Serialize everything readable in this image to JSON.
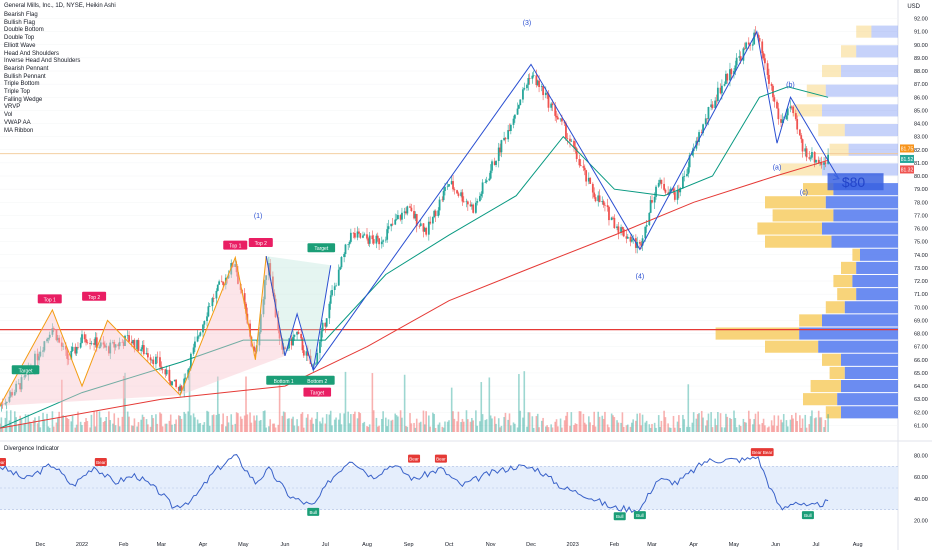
{
  "header": {
    "title": "General Mills, Inc., 1D, NYSE, Heikin Ashi",
    "currency": "USD"
  },
  "indicator_list": [
    "Bearish Flag",
    "Bullish Flag",
    "Double Bottom",
    "Double Top",
    "Elliott Wave",
    "Head And Shoulders",
    "Inverse Head And Shoulders",
    "Bearish Pennant",
    "Bullish Pennant",
    "Triple Bottom",
    "Triple Top",
    "Falling Wedge",
    "VRVP",
    "Vol",
    "VWAP AA",
    "MA Ribbon"
  ],
  "oscillator_title": "Divergence Indicator",
  "colors": {
    "up": "#26a69a",
    "down": "#ef5350",
    "ma_green": "#089981",
    "ma_red": "#e53935",
    "wave_blue": "#2a4fd1",
    "pattern_orange": "#f39c12",
    "vol_profile_blue": "#5b7ff0",
    "vol_profile_yellow": "#f7cf6b",
    "osc_line": "#3a62c9",
    "osc_band": "#dfeafb"
  },
  "chart_data": [
    {
      "type": "candlestick",
      "title": "General Mills, Inc., 1D, NYSE, Heikin Ashi",
      "x_ticks": [
        "Dec",
        "2022",
        "Feb",
        "Mar",
        "Apr",
        "May",
        "Jun",
        "Jul",
        "Aug",
        "Sep",
        "Oct",
        "Nov",
        "Dec",
        "2023",
        "Feb",
        "Mar",
        "Apr",
        "May",
        "Jun",
        "Jul",
        "Aug"
      ],
      "y_ticks": [
        "92.00",
        "91.00",
        "90.00",
        "89.00",
        "88.00",
        "87.00",
        "86.00",
        "85.00",
        "84.00",
        "83.00",
        "82.00",
        "81.00",
        "80.00",
        "79.00",
        "78.00",
        "77.00",
        "76.00",
        "75.00",
        "74.00",
        "73.00",
        "72.00",
        "71.00",
        "70.00",
        "69.00",
        "68.00",
        "67.00",
        "66.00",
        "65.00",
        "64.00",
        "63.00",
        "62.00",
        "61.00"
      ],
      "ylim": [
        60.5,
        92.8
      ],
      "price_path": [
        {
          "x": "2021-11-01",
          "y": 62.5
        },
        {
          "x": "2021-11-20",
          "y": 64.5
        },
        {
          "x": "2021-12-10",
          "y": 68.5
        },
        {
          "x": "2021-12-22",
          "y": 66.0
        },
        {
          "x": "2022-01-03",
          "y": 67.8
        },
        {
          "x": "2022-01-20",
          "y": 66.8
        },
        {
          "x": "2022-02-05",
          "y": 67.6
        },
        {
          "x": "2022-02-25",
          "y": 66.0
        },
        {
          "x": "2022-03-15",
          "y": 63.5
        },
        {
          "x": "2022-04-05",
          "y": 70.0
        },
        {
          "x": "2022-04-25",
          "y": 73.5
        },
        {
          "x": "2022-05-10",
          "y": 66.0
        },
        {
          "x": "2022-05-20",
          "y": 73.7
        },
        {
          "x": "2022-05-30",
          "y": 66.4
        },
        {
          "x": "2022-06-10",
          "y": 68.0
        },
        {
          "x": "2022-06-22",
          "y": 65.2
        },
        {
          "x": "2022-07-05",
          "y": 70.5
        },
        {
          "x": "2022-07-20",
          "y": 75.5
        },
        {
          "x": "2022-08-10",
          "y": 75.0
        },
        {
          "x": "2022-08-31",
          "y": 77.5
        },
        {
          "x": "2022-09-15",
          "y": 75.8
        },
        {
          "x": "2022-10-01",
          "y": 79.5
        },
        {
          "x": "2022-10-20",
          "y": 77.5
        },
        {
          "x": "2022-11-10",
          "y": 82.5
        },
        {
          "x": "2022-12-01",
          "y": 87.8
        },
        {
          "x": "2022-12-10",
          "y": 86.5
        },
        {
          "x": "2022-12-28",
          "y": 83.2
        },
        {
          "x": "2023-01-15",
          "y": 79.0
        },
        {
          "x": "2023-02-05",
          "y": 76.0
        },
        {
          "x": "2023-02-20",
          "y": 74.6
        },
        {
          "x": "2023-03-05",
          "y": 79.5
        },
        {
          "x": "2023-03-20",
          "y": 78.5
        },
        {
          "x": "2023-04-05",
          "y": 83.0
        },
        {
          "x": "2023-04-20",
          "y": 86.5
        },
        {
          "x": "2023-05-05",
          "y": 89.0
        },
        {
          "x": "2023-05-18",
          "y": 90.8
        },
        {
          "x": "2023-05-28",
          "y": 87.0
        },
        {
          "x": "2023-06-05",
          "y": 84.0
        },
        {
          "x": "2023-06-12",
          "y": 85.3
        },
        {
          "x": "2023-06-22",
          "y": 82.0
        },
        {
          "x": "2023-07-05",
          "y": 81.0
        },
        {
          "x": "2023-07-10",
          "y": 81.3
        }
      ],
      "moving_averages": [
        {
          "name": "",
          "color": "#089981",
          "points": [
            {
              "x": "2021-11-01",
              "y": 60.8
            },
            {
              "x": "2022-01-01",
              "y": 63.5
            },
            {
              "x": "2022-03-15",
              "y": 65.8
            },
            {
              "x": "2022-05-01",
              "y": 67.5
            },
            {
              "x": "2022-07-01",
              "y": 67.5
            },
            {
              "x": "2022-08-15",
              "y": 72.5
            },
            {
              "x": "2022-10-01",
              "y": 75.5
            },
            {
              "x": "2022-11-20",
              "y": 78.5
            },
            {
              "x": "2022-12-25",
              "y": 83.0
            },
            {
              "x": "2023-02-01",
              "y": 79.0
            },
            {
              "x": "2023-03-10",
              "y": 78.5
            },
            {
              "x": "2023-04-15",
              "y": 80.0
            },
            {
              "x": "2023-05-20",
              "y": 86.0
            },
            {
              "x": "2023-06-10",
              "y": 86.8
            },
            {
              "x": "2023-07-10",
              "y": 86.0
            }
          ]
        },
        {
          "name": "",
          "color": "#e53935",
          "points": [
            {
              "x": "2021-11-01",
              "y": 60.8
            },
            {
              "x": "2022-03-01",
              "y": 63.0
            },
            {
              "x": "2022-06-01",
              "y": 64.0
            },
            {
              "x": "2022-08-01",
              "y": 67.0
            },
            {
              "x": "2022-10-01",
              "y": 70.5
            },
            {
              "x": "2022-12-01",
              "y": 73.0
            },
            {
              "x": "2023-02-01",
              "y": 75.5
            },
            {
              "x": "2023-04-01",
              "y": 78.0
            },
            {
              "x": "2023-06-01",
              "y": 80.0
            },
            {
              "x": "2023-07-10",
              "y": 81.2
            }
          ]
        }
      ],
      "horizontal_lines": [
        {
          "y": 68.3,
          "color": "#e53935"
        },
        {
          "y": 81.7,
          "color": "#f2c894"
        }
      ],
      "elliott_wave": [
        {
          "x": "2022-06-22",
          "y": 65.2
        },
        {
          "x": "2022-12-01",
          "y": 88.5
        },
        {
          "x": "2023-02-20",
          "y": 74.4
        },
        {
          "x": "2023-05-18",
          "y": 91.0
        },
        {
          "x": "2023-06-02",
          "y": 82.5
        },
        {
          "x": "2023-06-12",
          "y": 86.0
        },
        {
          "x": "2023-07-18",
          "y": 79.8
        }
      ],
      "wave_labels": [
        {
          "text": "(1)",
          "x": "2022-05-12",
          "y": 76.8
        },
        {
          "text": "(3)",
          "x": "2022-11-28",
          "y": 91.5
        },
        {
          "text": "(4)",
          "x": "2023-02-20",
          "y": 72.2
        },
        {
          "text": "(b)",
          "x": "2023-06-12",
          "y": 86.8
        },
        {
          "text": "(a)",
          "x": "2023-06-02",
          "y": 80.5
        },
        {
          "text": "(c)",
          "x": "2023-06-22",
          "y": 78.6
        }
      ],
      "price_target_label": {
        "text": "$80",
        "x": "2023-07-20",
        "y": 79.3
      },
      "patterns": [
        {
          "name": "double-top-1",
          "color": "#f39c12",
          "points": [
            {
              "x": "2021-11-01",
              "y": 62.5
            },
            {
              "x": "2021-12-10",
              "y": 69.8
            },
            {
              "x": "2022-01-01",
              "y": 64.0
            },
            {
              "x": "2022-01-20",
              "y": 69.0
            },
            {
              "x": "2022-03-15",
              "y": 63.3
            }
          ]
        },
        {
          "name": "double-top-2",
          "color": "#f39c12",
          "points": [
            {
              "x": "2022-03-15",
              "y": 63.3
            },
            {
              "x": "2022-04-25",
              "y": 73.8
            },
            {
              "x": "2022-05-10",
              "y": 66.0
            },
            {
              "x": "2022-05-18",
              "y": 73.9
            },
            {
              "x": "2022-06-01",
              "y": 66.3
            }
          ]
        },
        {
          "name": "double-bottom",
          "color": "#2a4fd1",
          "points": [
            {
              "x": "2022-05-18",
              "y": 73.9
            },
            {
              "x": "2022-06-01",
              "y": 66.3
            },
            {
              "x": "2022-06-10",
              "y": 69.5
            },
            {
              "x": "2022-06-22",
              "y": 65.2
            },
            {
              "x": "2022-07-05",
              "y": 73.2
            }
          ]
        }
      ],
      "badges": [
        {
          "text": "Top 1",
          "type": "bear",
          "x": "2021-12-08",
          "y": 70.6
        },
        {
          "text": "Top 2",
          "type": "bear",
          "x": "2022-01-10",
          "y": 70.8
        },
        {
          "text": "Target",
          "type": "bull",
          "x": "2021-11-20",
          "y": 65.2
        },
        {
          "text": "Top 1",
          "type": "bear",
          "x": "2022-04-25",
          "y": 74.7
        },
        {
          "text": "Top 2",
          "type": "bear",
          "x": "2022-05-14",
          "y": 74.9
        },
        {
          "text": "Target",
          "type": "bull",
          "x": "2022-06-28",
          "y": 74.5
        },
        {
          "text": "Bottom 1",
          "type": "bull",
          "x": "2022-05-31",
          "y": 64.4
        },
        {
          "text": "Bottom 2",
          "type": "bull",
          "x": "2022-06-25",
          "y": 64.4
        },
        {
          "text": "Target",
          "type": "bear",
          "x": "2022-06-25",
          "y": 63.5
        }
      ],
      "price_labels": [
        {
          "text": "81.75",
          "color": "#f7931a",
          "y": 82.1
        },
        {
          "text": "81.52",
          "color": "#26a69a",
          "y": 81.3
        },
        {
          "text": "81.32",
          "color": "#ef5350",
          "y": 80.5
        }
      ],
      "volume_profile_levels": [
        {
          "y": 91.0,
          "total": 0.22,
          "up": 0.14
        },
        {
          "y": 89.5,
          "total": 0.3,
          "up": 0.22
        },
        {
          "y": 88.0,
          "total": 0.4,
          "up": 0.3
        },
        {
          "y": 86.5,
          "total": 0.48,
          "up": 0.38
        },
        {
          "y": 85.0,
          "total": 0.55,
          "up": 0.4
        },
        {
          "y": 83.5,
          "total": 0.42,
          "up": 0.28
        },
        {
          "y": 82.0,
          "total": 0.36,
          "up": 0.26
        },
        {
          "y": 80.5,
          "total": 0.62,
          "up": 0.4
        },
        {
          "y": 79.0,
          "total": 0.5,
          "up": 0.34
        },
        {
          "y": 78.0,
          "total": 0.7,
          "up": 0.38
        },
        {
          "y": 77.0,
          "total": 0.66,
          "up": 0.34
        },
        {
          "y": 76.0,
          "total": 0.74,
          "up": 0.4
        },
        {
          "y": 75.0,
          "total": 0.7,
          "up": 0.35
        },
        {
          "y": 74.0,
          "total": 0.24,
          "up": 0.2
        },
        {
          "y": 73.0,
          "total": 0.3,
          "up": 0.22
        },
        {
          "y": 72.0,
          "total": 0.34,
          "up": 0.24
        },
        {
          "y": 71.0,
          "total": 0.32,
          "up": 0.22
        },
        {
          "y": 70.0,
          "total": 0.38,
          "up": 0.28
        },
        {
          "y": 69.0,
          "total": 0.52,
          "up": 0.4
        },
        {
          "y": 68.0,
          "total": 0.96,
          "up": 0.52
        },
        {
          "y": 67.0,
          "total": 0.7,
          "up": 0.42
        },
        {
          "y": 66.0,
          "total": 0.4,
          "up": 0.3
        },
        {
          "y": 65.0,
          "total": 0.36,
          "up": 0.28
        },
        {
          "y": 64.0,
          "total": 0.46,
          "up": 0.3
        },
        {
          "y": 63.0,
          "total": 0.5,
          "up": 0.32
        },
        {
          "y": 62.0,
          "total": 0.38,
          "up": 0.3
        }
      ]
    },
    {
      "type": "line",
      "title": "Divergence Indicator",
      "y_ticks": [
        "80.00",
        "60.00",
        "40.00",
        "20.00"
      ],
      "ylim": [
        15,
        85
      ],
      "band": [
        30,
        70
      ],
      "points": [
        {
          "x": "2021-11-01",
          "y": 70
        },
        {
          "x": "2021-11-20",
          "y": 58
        },
        {
          "x": "2021-12-10",
          "y": 72
        },
        {
          "x": "2021-12-25",
          "y": 52
        },
        {
          "x": "2022-01-10",
          "y": 70
        },
        {
          "x": "2022-01-25",
          "y": 55
        },
        {
          "x": "2022-02-10",
          "y": 62
        },
        {
          "x": "2022-03-01",
          "y": 45
        },
        {
          "x": "2022-03-10",
          "y": 32
        },
        {
          "x": "2022-03-25",
          "y": 40
        },
        {
          "x": "2022-04-10",
          "y": 66
        },
        {
          "x": "2022-04-25",
          "y": 80
        },
        {
          "x": "2022-05-10",
          "y": 55
        },
        {
          "x": "2022-05-20",
          "y": 67
        },
        {
          "x": "2022-06-05",
          "y": 42
        },
        {
          "x": "2022-06-22",
          "y": 33
        },
        {
          "x": "2022-07-05",
          "y": 58
        },
        {
          "x": "2022-07-20",
          "y": 77
        },
        {
          "x": "2022-08-05",
          "y": 60
        },
        {
          "x": "2022-08-20",
          "y": 72
        },
        {
          "x": "2022-09-05",
          "y": 58
        },
        {
          "x": "2022-09-25",
          "y": 68
        },
        {
          "x": "2022-10-10",
          "y": 52
        },
        {
          "x": "2022-10-30",
          "y": 63
        },
        {
          "x": "2022-11-20",
          "y": 70
        },
        {
          "x": "2022-12-05",
          "y": 68
        },
        {
          "x": "2022-12-25",
          "y": 50
        },
        {
          "x": "2023-01-10",
          "y": 44
        },
        {
          "x": "2023-01-30",
          "y": 32
        },
        {
          "x": "2023-02-20",
          "y": 30
        },
        {
          "x": "2023-03-05",
          "y": 58
        },
        {
          "x": "2023-03-20",
          "y": 55
        },
        {
          "x": "2023-04-10",
          "y": 75
        },
        {
          "x": "2023-04-25",
          "y": 76
        },
        {
          "x": "2023-05-10",
          "y": 76
        },
        {
          "x": "2023-05-18",
          "y": 80
        },
        {
          "x": "2023-05-28",
          "y": 50
        },
        {
          "x": "2023-06-05",
          "y": 30
        },
        {
          "x": "2023-06-15",
          "y": 38
        },
        {
          "x": "2023-06-25",
          "y": 32
        },
        {
          "x": "2023-07-10",
          "y": 37
        }
      ],
      "signals": [
        {
          "text": "Bear",
          "type": "bear",
          "x": "2021-11-01",
          "y": 74
        },
        {
          "text": "Bear",
          "type": "bear",
          "x": "2022-01-15",
          "y": 74
        },
        {
          "text": "Bull",
          "type": "bull",
          "x": "2022-06-22",
          "y": 28
        },
        {
          "text": "Bear",
          "type": "bear",
          "x": "2022-09-05",
          "y": 77
        },
        {
          "text": "Bear",
          "type": "bear",
          "x": "2022-09-25",
          "y": 77
        },
        {
          "text": "Bull",
          "type": "bull",
          "x": "2023-02-05",
          "y": 24
        },
        {
          "text": "Bull",
          "type": "bull",
          "x": "2023-02-20",
          "y": 25
        },
        {
          "text": "Bear",
          "type": "bear",
          "x": "2023-05-18",
          "y": 83
        },
        {
          "text": "Bear",
          "type": "bear",
          "x": "2023-05-26",
          "y": 83
        },
        {
          "text": "Bull",
          "type": "bull",
          "x": "2023-06-25",
          "y": 25
        }
      ]
    }
  ]
}
